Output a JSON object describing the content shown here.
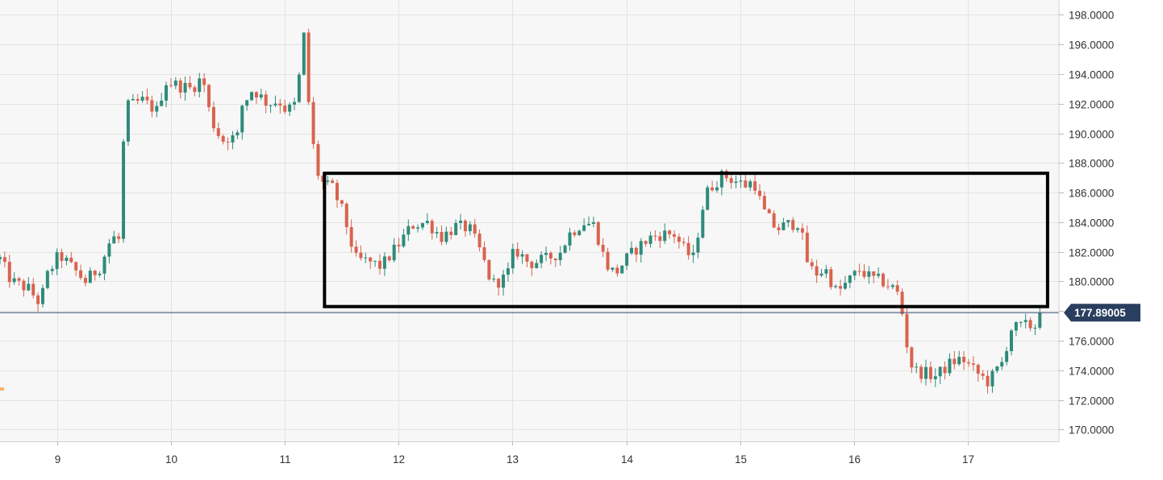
{
  "chart_data": {
    "type": "candlestick",
    "title": "",
    "xlabel": "",
    "ylabel": "",
    "ylim": [
      169.2,
      199.0
    ],
    "xlim": [
      8.5,
      17.8
    ],
    "x_ticks": [
      "9",
      "10",
      "11",
      "12",
      "13",
      "14",
      "15",
      "16",
      "17"
    ],
    "y_ticks": [
      "198.0000",
      "196.0000",
      "194.0000",
      "192.0000",
      "190.0000",
      "188.0000",
      "186.0000",
      "184.0000",
      "182.0000",
      "180.0000",
      "178.0000",
      "176.0000",
      "174.0000",
      "172.0000",
      "170.0000"
    ],
    "grid": true,
    "current_price": {
      "label": "177.89005",
      "value": 177.89005
    },
    "annotation_box": {
      "x_start": 11.35,
      "x_end": 17.7,
      "y_low": 178.3,
      "y_high": 187.3
    },
    "colors": {
      "up": "#2e8b7a",
      "down": "#d9634f",
      "price_line": "#3b4f74",
      "price_label_bg": "#2a3f5f",
      "grid": "#e3e3e3",
      "plot_bg": "#f7f7f7",
      "box": "#000000"
    },
    "series": [
      {
        "name": "",
        "anchors": [
          [
            8.5,
            181.5
          ],
          [
            8.6,
            180.0
          ],
          [
            8.75,
            179.5
          ],
          [
            8.85,
            178.5
          ],
          [
            8.92,
            180.5
          ],
          [
            9.02,
            181.8
          ],
          [
            9.15,
            180.8
          ],
          [
            9.25,
            180.0
          ],
          [
            9.38,
            181.0
          ],
          [
            9.48,
            183.0
          ],
          [
            9.55,
            182.8
          ],
          [
            9.58,
            189.0
          ],
          [
            9.62,
            191.8
          ],
          [
            9.75,
            192.2
          ],
          [
            9.88,
            191.5
          ],
          [
            9.95,
            193.5
          ],
          [
            10.08,
            193.2
          ],
          [
            10.18,
            193.0
          ],
          [
            10.28,
            193.8
          ],
          [
            10.35,
            191.0
          ],
          [
            10.45,
            189.5
          ],
          [
            10.52,
            189.8
          ],
          [
            10.58,
            189.5
          ],
          [
            10.62,
            191.8
          ],
          [
            10.72,
            193.0
          ],
          [
            10.85,
            192.0
          ],
          [
            10.95,
            192.2
          ],
          [
            11.02,
            191.5
          ],
          [
            11.1,
            192.0
          ],
          [
            11.18,
            197.3
          ],
          [
            11.22,
            190.5
          ],
          [
            11.3,
            187.0
          ],
          [
            11.35,
            186.5
          ],
          [
            11.42,
            186.3
          ],
          [
            11.52,
            184.5
          ],
          [
            11.62,
            181.5
          ],
          [
            11.75,
            181.3
          ],
          [
            11.85,
            181.0
          ],
          [
            12.0,
            182.5
          ],
          [
            12.12,
            183.8
          ],
          [
            12.25,
            184.0
          ],
          [
            12.38,
            183.0
          ],
          [
            12.5,
            183.7
          ],
          [
            12.62,
            183.6
          ],
          [
            12.72,
            182.0
          ],
          [
            12.82,
            179.8
          ],
          [
            12.95,
            180.3
          ],
          [
            13.02,
            182.2
          ],
          [
            13.15,
            181.2
          ],
          [
            13.3,
            181.5
          ],
          [
            13.42,
            182.0
          ],
          [
            13.5,
            183.2
          ],
          [
            13.62,
            184.0
          ],
          [
            13.72,
            183.8
          ],
          [
            13.82,
            181.2
          ],
          [
            13.9,
            180.5
          ],
          [
            14.0,
            181.5
          ],
          [
            14.1,
            182.3
          ],
          [
            14.22,
            183.0
          ],
          [
            14.32,
            183.2
          ],
          [
            14.42,
            183.2
          ],
          [
            14.52,
            182.0
          ],
          [
            14.6,
            181.5
          ],
          [
            14.65,
            184.5
          ],
          [
            14.72,
            186.2
          ],
          [
            14.85,
            187.2
          ],
          [
            14.95,
            186.8
          ],
          [
            15.05,
            186.5
          ],
          [
            15.12,
            186.8
          ],
          [
            15.2,
            184.8
          ],
          [
            15.32,
            183.5
          ],
          [
            15.4,
            183.8
          ],
          [
            15.52,
            184.0
          ],
          [
            15.58,
            181.5
          ],
          [
            15.65,
            180.5
          ],
          [
            15.75,
            180.8
          ],
          [
            15.85,
            179.2
          ],
          [
            15.95,
            180.0
          ],
          [
            16.05,
            180.8
          ],
          [
            16.15,
            180.2
          ],
          [
            16.25,
            180.0
          ],
          [
            16.35,
            179.5
          ],
          [
            16.4,
            179.0
          ],
          [
            16.48,
            175.0
          ],
          [
            16.52,
            174.0
          ],
          [
            16.62,
            173.8
          ],
          [
            16.72,
            173.6
          ],
          [
            16.85,
            174.5
          ],
          [
            16.95,
            174.8
          ],
          [
            17.05,
            174.0
          ],
          [
            17.18,
            173.2
          ],
          [
            17.3,
            174.5
          ],
          [
            17.38,
            176.8
          ],
          [
            17.5,
            177.0
          ],
          [
            17.6,
            177.0
          ],
          [
            17.65,
            177.9
          ]
        ]
      }
    ]
  }
}
